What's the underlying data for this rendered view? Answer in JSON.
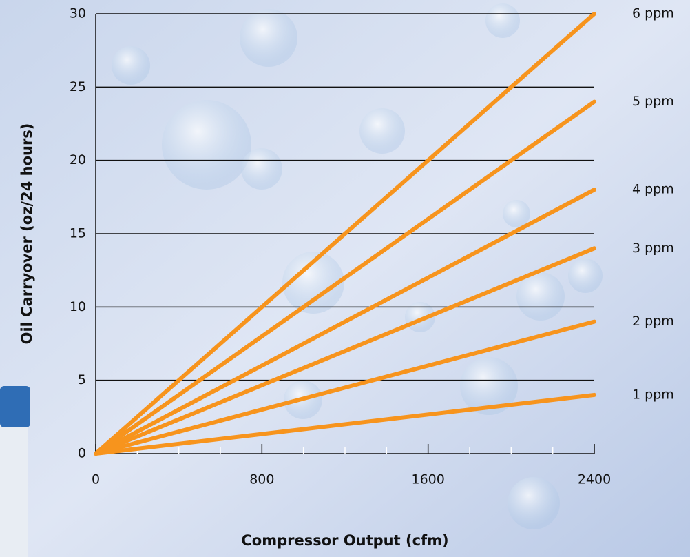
{
  "chart_data": {
    "type": "line",
    "x_label": "Compressor Output (cfm)",
    "y_label": "Oil Carryover (oz/24 hours)",
    "x": [
      0,
      2400
    ],
    "series": [
      {
        "name": "1 ppm",
        "color": "#f7941d",
        "values": [
          0,
          4
        ]
      },
      {
        "name": "2 ppm",
        "color": "#f7941d",
        "values": [
          0,
          9
        ]
      },
      {
        "name": "3 ppm",
        "color": "#f7941d",
        "values": [
          0,
          14
        ]
      },
      {
        "name": "4 ppm",
        "color": "#f7941d",
        "values": [
          0,
          18
        ]
      },
      {
        "name": "5 ppm",
        "color": "#f7941d",
        "values": [
          0,
          24
        ]
      },
      {
        "name": "6 ppm",
        "color": "#f7941d",
        "values": [
          0,
          30
        ]
      }
    ],
    "xlim": [
      0,
      2400
    ],
    "xticks": [
      0,
      800,
      1600,
      2400
    ],
    "xminorticks": [
      200,
      400,
      600,
      1000,
      1200,
      1400,
      1800,
      2000,
      2200
    ],
    "ylim": [
      0,
      30
    ],
    "yticks": [
      0,
      5,
      10,
      15,
      20,
      25,
      30
    ],
    "grid": true
  }
}
